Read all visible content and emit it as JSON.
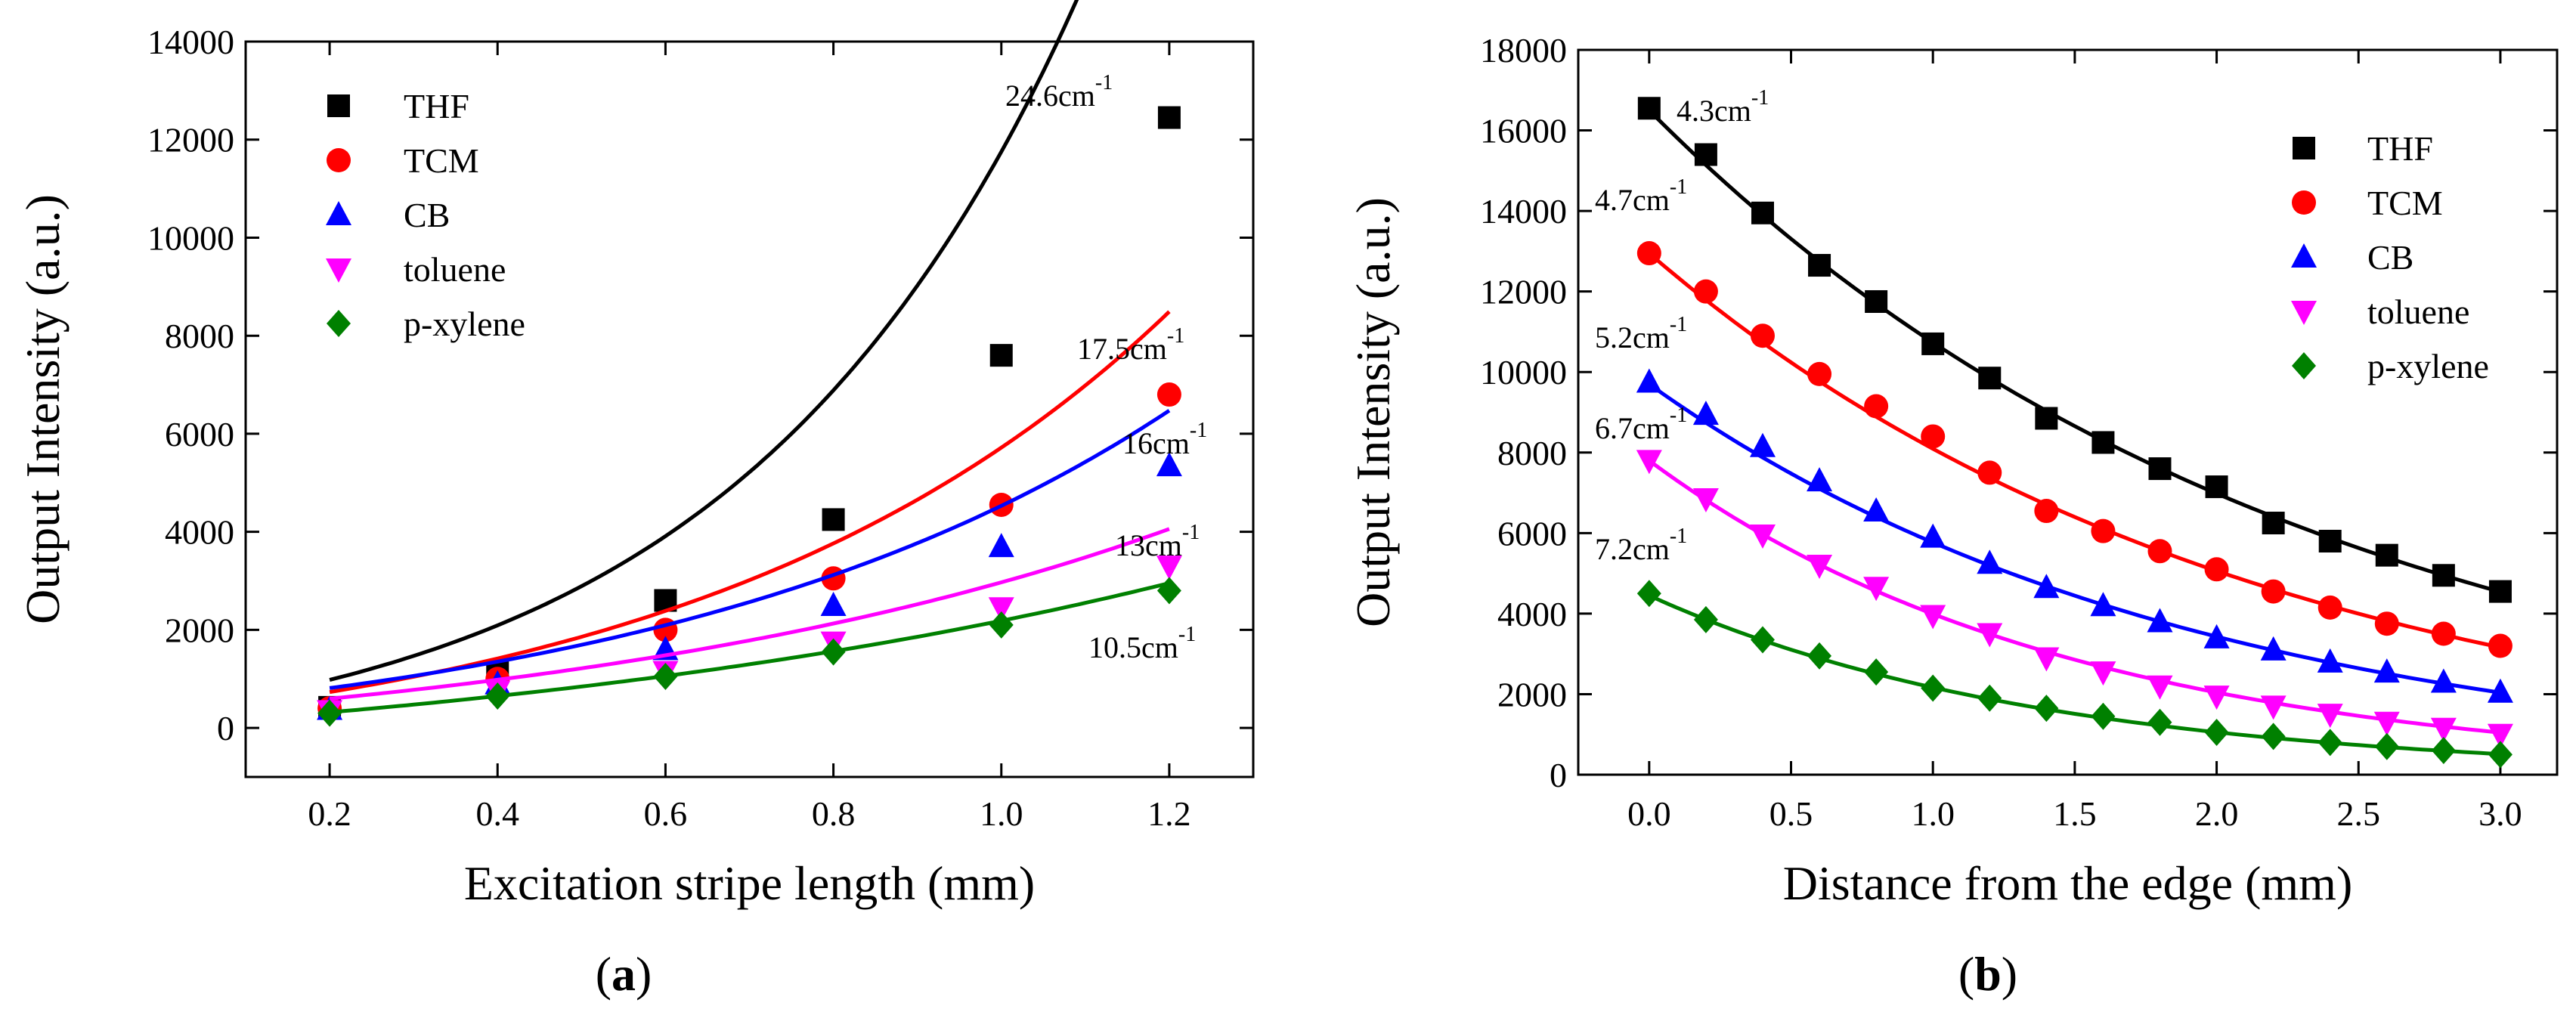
{
  "chart_data": [
    {
      "panel_label": "(a)",
      "panel_letter": "a",
      "type": "scatter",
      "xlabel": "Excitation stripe length (mm)",
      "ylabel": "Output Intensity (a.u.)",
      "xlim": [
        0.1,
        1.3
      ],
      "ylim": [
        -1000,
        14000
      ],
      "xticks": [
        0.2,
        0.4,
        0.6,
        0.8,
        1.0,
        1.2
      ],
      "xtick_labels": [
        "0.2",
        "0.4",
        "0.6",
        "0.8",
        "1.0",
        "1.2"
      ],
      "yticks": [
        0,
        2000,
        4000,
        6000,
        8000,
        10000,
        12000,
        14000
      ],
      "ytick_labels": [
        "0",
        "2000",
        "4000",
        "6000",
        "8000",
        "10000",
        "12000",
        "14000"
      ],
      "legend_position": "top-left",
      "x": [
        0.2,
        0.4,
        0.6,
        0.8,
        1.0,
        1.2
      ],
      "series": [
        {
          "name": "THF",
          "color": "#000000",
          "marker": "square",
          "values": [
            420,
            1150,
            2600,
            4250,
            7600,
            12450
          ],
          "fit": {
            "type": "exp",
            "gain": 24.6,
            "A": 1070,
            "B": -770
          },
          "annotation": {
            "base": "24.6cm",
            "sup": "-1"
          }
        },
        {
          "name": "TCM",
          "color": "#ff0000",
          "marker": "circle",
          "values": [
            400,
            1000,
            2000,
            3050,
            4550,
            6800
          ],
          "fit": {
            "type": "exp",
            "gain": 17.5,
            "A": 1150,
            "B": -900
          },
          "annotation": {
            "base": "17.5cm",
            "sup": "-1"
          }
        },
        {
          "name": "CB",
          "color": "#0000ff",
          "marker": "triangle-up",
          "values": [
            380,
            900,
            1600,
            2500,
            3700,
            5350
          ],
          "fit": {
            "type": "exp",
            "gain": 16,
            "A": 1040,
            "B": -620
          },
          "annotation": {
            "base": "16cm",
            "sup": "-1"
          }
        },
        {
          "name": "toluene",
          "color": "#ff00ff",
          "marker": "triangle-down",
          "values": [
            350,
            750,
            1150,
            1750,
            2450,
            3300
          ],
          "fit": {
            "type": "exp",
            "gain": 13,
            "A": 1000,
            "B": -700
          },
          "annotation": {
            "base": "13cm",
            "sup": "-1"
          }
        },
        {
          "name": "p-xylene",
          "color": "#008000",
          "marker": "diamond",
          "values": [
            300,
            650,
            1050,
            1550,
            2100,
            2800
          ],
          "fit": {
            "type": "exp",
            "gain": 10.5,
            "A": 1150,
            "B": -1100
          },
          "annotation": {
            "base": "10.5cm",
            "sup": "-1"
          }
        }
      ]
    },
    {
      "panel_label": "(b)",
      "panel_letter": "b",
      "type": "scatter",
      "xlabel": "Distance from the edge (mm)",
      "ylabel": "Output Intensity (a.u.)",
      "xlim": [
        -0.25,
        3.2
      ],
      "ylim": [
        0,
        18000
      ],
      "xticks": [
        0.0,
        0.5,
        1.0,
        1.5,
        2.0,
        2.5,
        3.0
      ],
      "xtick_labels": [
        "0.0",
        "0.5",
        "1.0",
        "1.5",
        "2.0",
        "2.5",
        "3.0"
      ],
      "yticks": [
        0,
        2000,
        4000,
        6000,
        8000,
        10000,
        12000,
        14000,
        16000,
        18000
      ],
      "ytick_labels": [
        "0",
        "2000",
        "4000",
        "6000",
        "8000",
        "10000",
        "12000",
        "14000",
        "16000",
        "18000"
      ],
      "legend_position": "top-right",
      "x": [
        0.0,
        0.2,
        0.4,
        0.6,
        0.8,
        1.0,
        1.2,
        1.4,
        1.6,
        1.8,
        2.0,
        2.2,
        2.4,
        2.6,
        2.8,
        3.0
      ],
      "series": [
        {
          "name": "THF",
          "color": "#000000",
          "marker": "square",
          "values": [
            16550,
            15400,
            13950,
            12650,
            11750,
            10700,
            9850,
            8850,
            8250,
            7600,
            7150,
            6250,
            5800,
            5450,
            4950,
            4550
          ],
          "fit": {
            "type": "exp",
            "loss": 4.3,
            "A": 16500,
            "C": 0
          },
          "annotation": {
            "base": "4.3cm",
            "sup": "-1"
          }
        },
        {
          "name": "TCM",
          "color": "#ff0000",
          "marker": "circle",
          "values": [
            12950,
            12000,
            10900,
            9950,
            9150,
            8400,
            7500,
            6550,
            6050,
            5550,
            5100,
            4550,
            4150,
            3750,
            3500,
            3200
          ],
          "fit": {
            "type": "exp",
            "loss": 4.7,
            "A": 12950,
            "C": 0
          },
          "annotation": {
            "base": "4.7cm",
            "sup": "-1"
          }
        },
        {
          "name": "CB",
          "color": "#0000ff",
          "marker": "triangle-up",
          "values": [
            9750,
            8950,
            8150,
            7300,
            6550,
            5900,
            5250,
            4650,
            4200,
            3800,
            3400,
            3100,
            2800,
            2550,
            2300,
            2050
          ],
          "fit": {
            "type": "exp",
            "loss": 5.2,
            "A": 9700,
            "C": 0
          },
          "annotation": {
            "base": "5.2cm",
            "sup": "-1"
          }
        },
        {
          "name": "toluene",
          "color": "#ff00ff",
          "marker": "triangle-down",
          "values": [
            7800,
            6850,
            5950,
            5200,
            4650,
            3950,
            3500,
            2900,
            2550,
            2200,
            1950,
            1700,
            1500,
            1300,
            1150,
            1000
          ],
          "fit": {
            "type": "exp",
            "loss": 6.7,
            "A": 7800,
            "C": 0
          },
          "annotation": {
            "base": "6.7cm",
            "sup": "-1"
          }
        },
        {
          "name": "p-xylene",
          "color": "#008000",
          "marker": "diamond",
          "values": [
            4500,
            3850,
            3350,
            2950,
            2550,
            2150,
            1900,
            1650,
            1450,
            1300,
            1050,
            950,
            800,
            700,
            600,
            500
          ],
          "fit": {
            "type": "exp",
            "loss": 7.2,
            "A": 4450,
            "C": 0
          },
          "annotation": {
            "base": "7.2cm",
            "sup": "-1"
          }
        }
      ]
    }
  ]
}
